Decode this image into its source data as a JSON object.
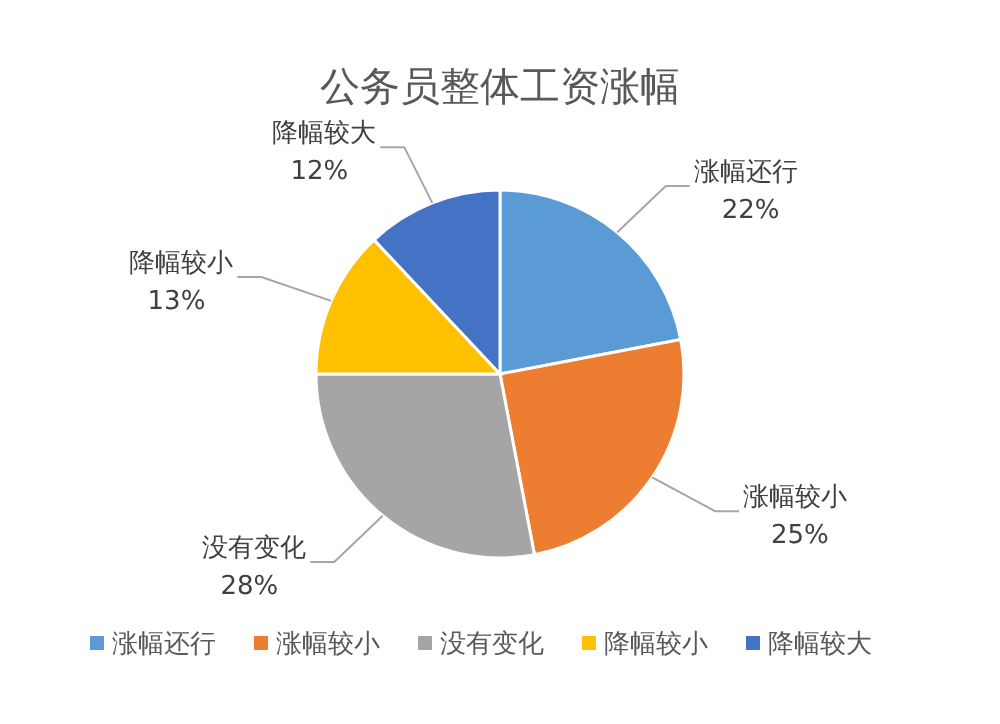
{
  "chart_data": {
    "type": "pie",
    "title": "公务员整体工资涨幅",
    "categories": [
      "涨幅还行",
      "涨幅较小",
      "没有变化",
      "降幅较小",
      "降幅较大"
    ],
    "values": [
      22,
      25,
      28,
      13,
      12
    ],
    "value_labels": [
      "22%",
      "25%",
      "28%",
      "13%",
      "12%"
    ],
    "colors": [
      "#5b9bd5",
      "#ed7d31",
      "#a5a5a5",
      "#ffc000",
      "#4472c4"
    ],
    "legend": "bottom"
  }
}
